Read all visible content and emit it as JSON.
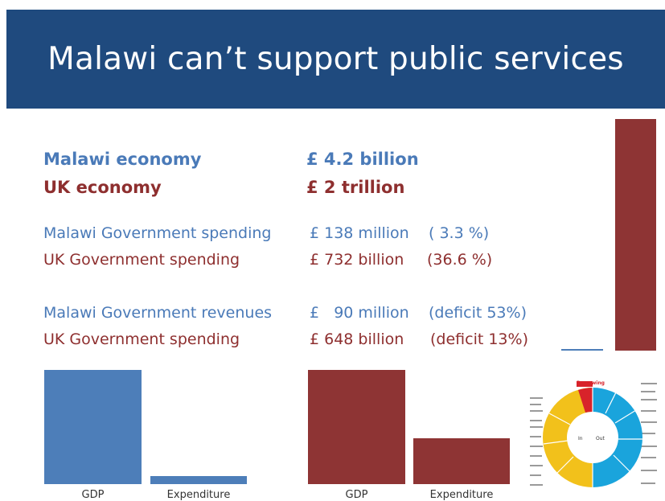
{
  "header": {
    "title": "Malawi can’t support public services"
  },
  "rows": {
    "malawi_economy": {
      "label": "Malawi economy",
      "value": "£ 4.2 billion"
    },
    "uk_economy": {
      "label": "UK economy",
      "value": "£ 2 trillion"
    },
    "malawi_spending": {
      "label": "Malawi Government spending",
      "value": "£ 138 million",
      "note": "(  3.3 %)"
    },
    "uk_spending": {
      "label": "UK Government spending",
      "value": "£ 732 billion",
      "note": "(36.6 %)"
    },
    "malawi_revenues": {
      "label": "Malawi Government revenues",
      "value": "£   90 million",
      "note": "(deficit 53%)"
    },
    "uk_spending_2": {
      "label": "UK Government spending",
      "value": "£ 648 billion",
      "note": "(deficit 13%)"
    }
  },
  "charts": {
    "malawi": {
      "gdp_label": "GDP",
      "expenditure_label": "Expenditure",
      "gdp_level": 1.0,
      "expenditure_level": 0.07
    },
    "uk": {
      "gdp_label": "GDP",
      "expenditure_label": "Expenditure",
      "gdp_level": 1.0,
      "expenditure_level": 0.4
    },
    "comparison": {
      "uk_level": 1.0,
      "malawi_level": 0.002
    }
  },
  "infographic": {
    "in_label": "In",
    "out_label": "Out",
    "borrowing_label": "Borrowing",
    "colors": {
      "in": "#f2c11b",
      "out": "#1aa4dc",
      "borrowing": "#d8232a"
    }
  },
  "colors": {
    "header": "#1f4a7e",
    "malawi": "#4a7ab8",
    "uk": "#8e2f2f"
  }
}
